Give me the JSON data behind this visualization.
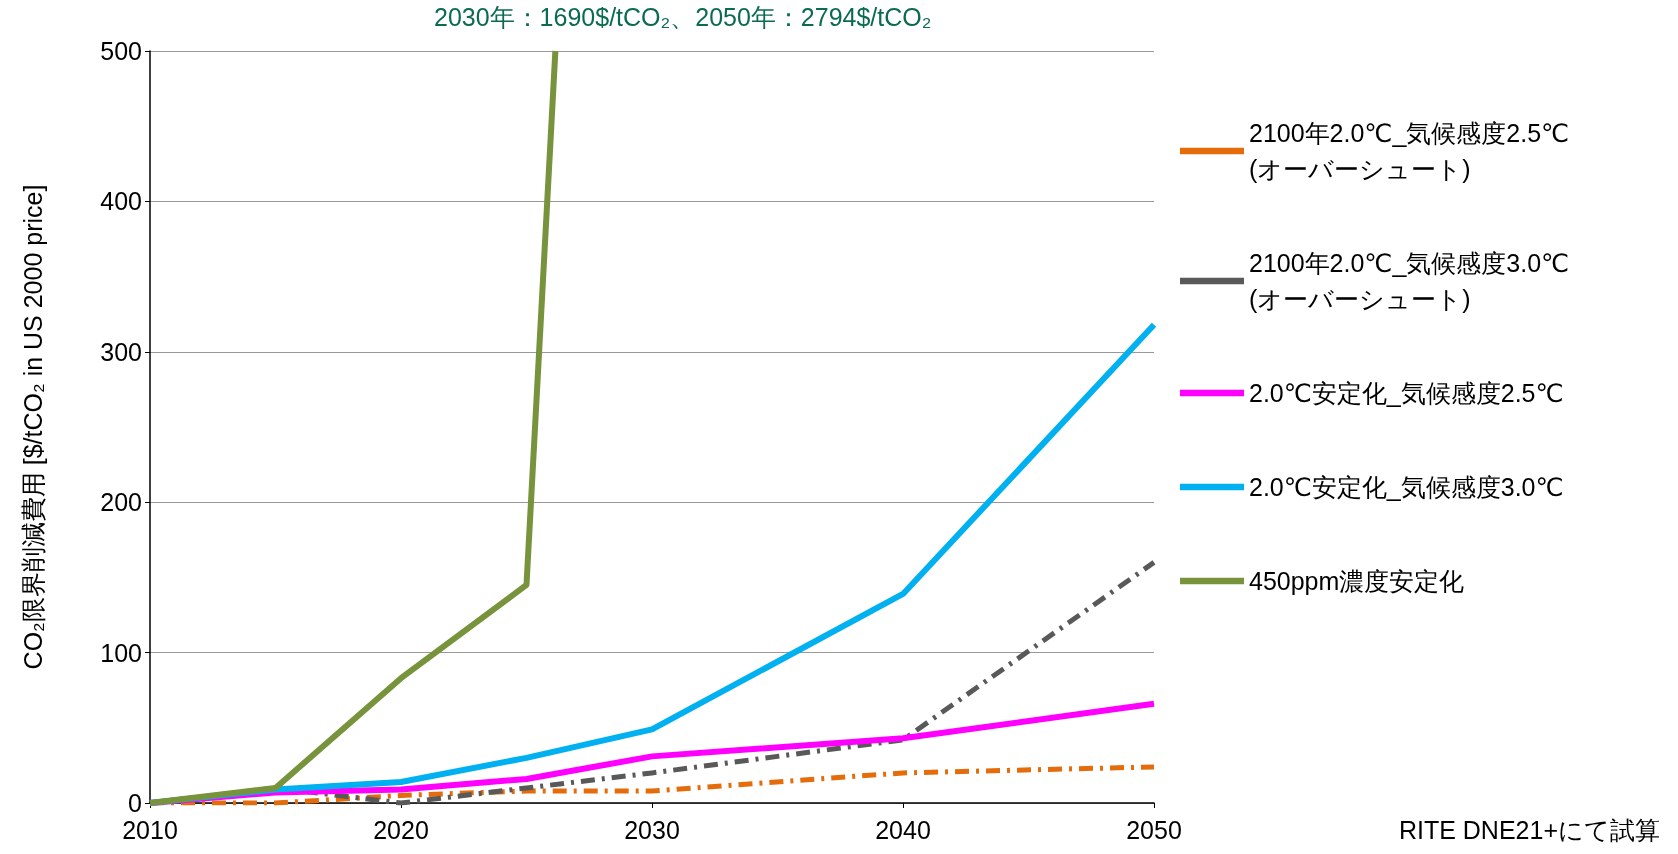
{
  "chart_data": {
    "type": "line",
    "ylabel": "CO₂限界削減費用 [$/tCO₂ in US 2000 price]",
    "x": [
      2010,
      2015,
      2020,
      2025,
      2030,
      2040,
      2050
    ],
    "xlim": [
      2010,
      2050
    ],
    "xticks": [
      2010,
      2020,
      2030,
      2040,
      2050
    ],
    "ylim": [
      0,
      500
    ],
    "yticks": [
      0,
      100,
      200,
      300,
      400,
      500
    ],
    "grid": "y",
    "legend": "right",
    "marker": "none",
    "series": [
      {
        "name": "2100年2.0℃_気候感度2.5℃(オーバーシュート)",
        "color": "#e46c0a",
        "line_style": "dashed",
        "values": [
          0,
          0,
          5,
          8,
          8,
          20,
          24
        ]
      },
      {
        "name": "2100年2.0℃_気候感度3.0℃(オーバーシュート)",
        "color": "#595959",
        "line_style": "dashed",
        "values": [
          0,
          10,
          0,
          10,
          20,
          42,
          160
        ]
      },
      {
        "name": "2.0℃安定化_気候感度2.5℃",
        "color": "#ff00ff",
        "line_style": "solid",
        "values": [
          0,
          7,
          9,
          16,
          31,
          43,
          66
        ]
      },
      {
        "name": "2.0℃安定化_気候感度3.0℃",
        "color": "#00b0f0",
        "line_style": "solid",
        "values": [
          0,
          9,
          14,
          30,
          49,
          139,
          318
        ]
      },
      {
        "name": "450ppm濃度安定化",
        "color": "#77933c",
        "line_style": "solid",
        "x": [
          2010,
          2015,
          2020,
          2025,
          2026.15
        ],
        "values": [
          0,
          10,
          83,
          145,
          500
        ]
      }
    ],
    "annotations": [
      "2030年：1690$/tCO₂、2050年：2794$/tCO₂",
      "RITE DNE21+にて試算"
    ]
  }
}
